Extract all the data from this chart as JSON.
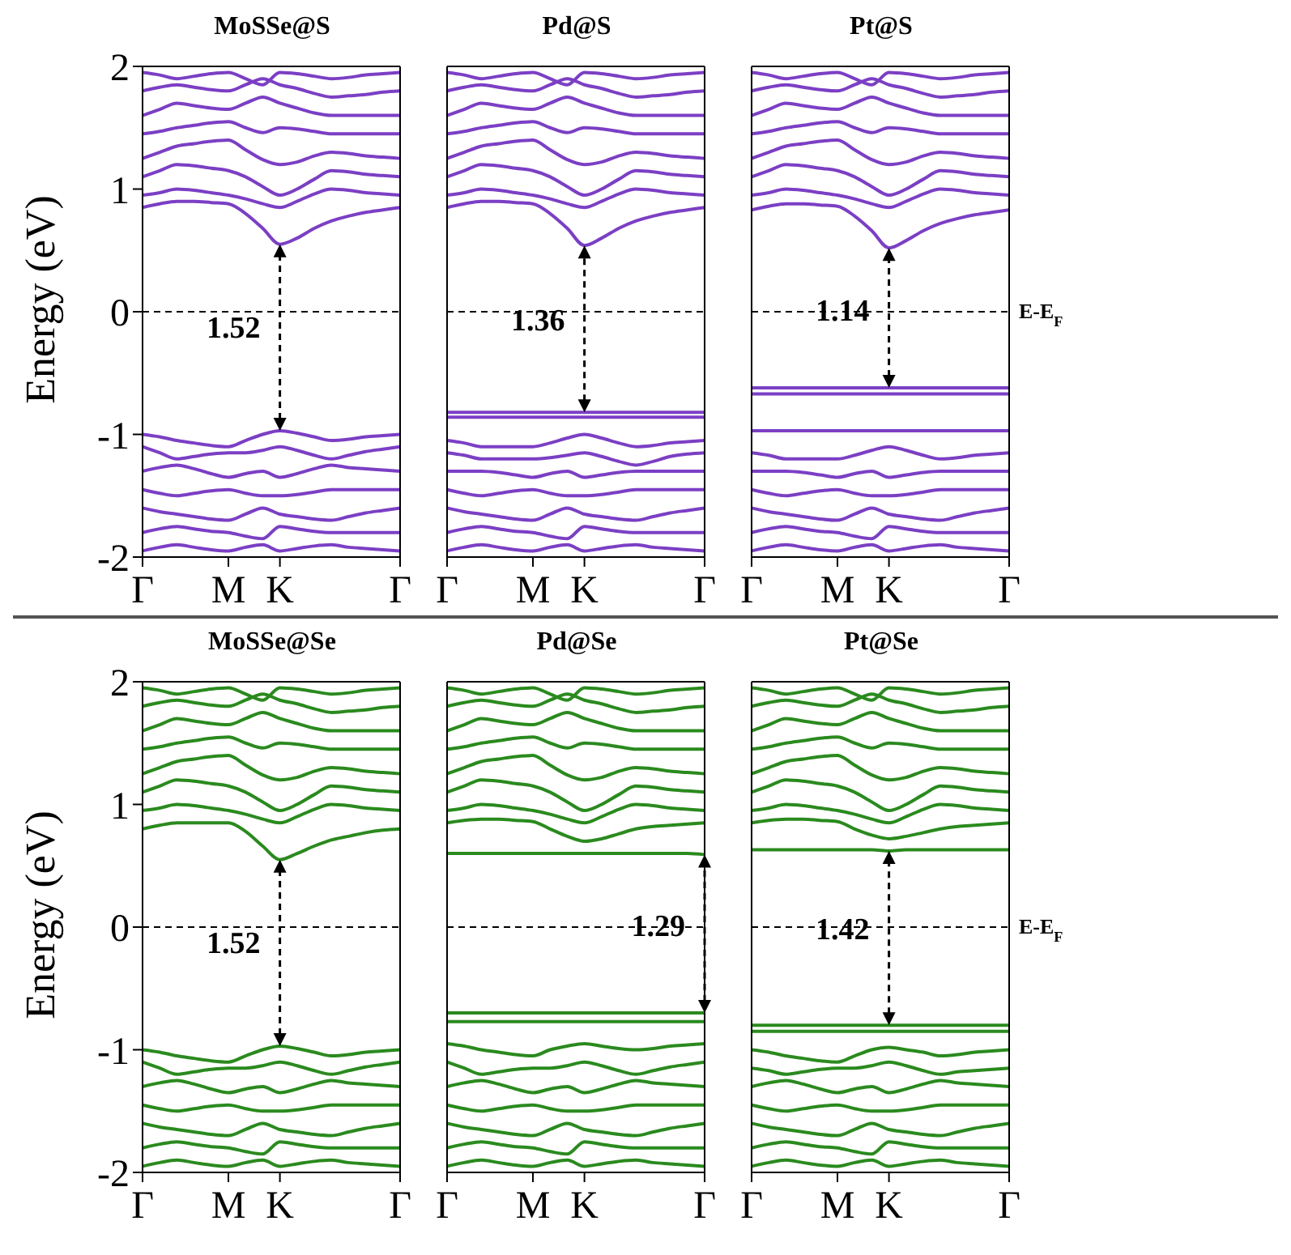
{
  "chart_data": [
    {
      "type": "line",
      "title": "MoSSe@S",
      "ylabel": "Energy (eV)",
      "color": "#7b3fc4",
      "categories": [
        "Γ",
        null,
        null,
        null,
        null,
        "M",
        null,
        null,
        "K",
        null,
        null,
        null,
        null,
        null,
        null,
        "Γ"
      ],
      "ylim": [
        -2,
        2
      ],
      "yticks": [
        -2,
        -1,
        0,
        1,
        2
      ],
      "ref_lines": [
        {
          "axis": "y",
          "value": 0,
          "color": "#000000",
          "line_style": "dashed"
        }
      ],
      "annotations": [
        "1.52"
      ],
      "series": [
        {
          "values": [
            0.85,
            0.88,
            0.9,
            0.9,
            0.89,
            0.88,
            0.8,
            0.68,
            0.55,
            0.6,
            0.68,
            0.74,
            0.78,
            0.81,
            0.83,
            0.85
          ]
        },
        {
          "values": [
            0.95,
            0.97,
            1.0,
            0.99,
            0.97,
            0.95,
            0.92,
            0.88,
            0.85,
            0.9,
            0.96,
            1.0,
            0.99,
            0.97,
            0.96,
            0.95
          ]
        },
        {
          "values": [
            1.1,
            1.15,
            1.2,
            1.19,
            1.17,
            1.15,
            1.1,
            1.02,
            0.95,
            1.0,
            1.08,
            1.15,
            1.14,
            1.12,
            1.11,
            1.1
          ]
        },
        {
          "values": [
            1.25,
            1.3,
            1.35,
            1.37,
            1.39,
            1.4,
            1.32,
            1.24,
            1.2,
            1.22,
            1.27,
            1.3,
            1.29,
            1.27,
            1.26,
            1.25
          ]
        },
        {
          "values": [
            1.45,
            1.47,
            1.5,
            1.52,
            1.54,
            1.55,
            1.5,
            1.46,
            1.5,
            1.49,
            1.47,
            1.45,
            1.45,
            1.45,
            1.45,
            1.45
          ]
        },
        {
          "values": [
            1.6,
            1.65,
            1.7,
            1.68,
            1.66,
            1.65,
            1.7,
            1.75,
            1.7,
            1.66,
            1.62,
            1.6,
            1.6,
            1.6,
            1.6,
            1.6
          ]
        },
        {
          "values": [
            1.8,
            1.83,
            1.85,
            1.83,
            1.81,
            1.8,
            1.85,
            1.9,
            1.85,
            1.82,
            1.78,
            1.75,
            1.76,
            1.77,
            1.79,
            1.8
          ]
        },
        {
          "values": [
            1.95,
            1.93,
            1.9,
            1.92,
            1.94,
            1.95,
            1.9,
            1.85,
            1.95,
            1.94,
            1.92,
            1.9,
            1.91,
            1.93,
            1.94,
            1.95
          ]
        },
        {
          "values": [
            -1.0,
            -1.02,
            -1.05,
            -1.07,
            -1.09,
            -1.1,
            -1.05,
            -1.0,
            -0.97,
            -0.99,
            -1.02,
            -1.05,
            -1.04,
            -1.02,
            -1.01,
            -1.0
          ]
        },
        {
          "values": [
            -1.1,
            -1.15,
            -1.2,
            -1.18,
            -1.16,
            -1.15,
            -1.15,
            -1.13,
            -1.1,
            -1.13,
            -1.17,
            -1.2,
            -1.17,
            -1.14,
            -1.12,
            -1.1
          ]
        },
        {
          "values": [
            -1.3,
            -1.27,
            -1.25,
            -1.28,
            -1.32,
            -1.35,
            -1.32,
            -1.3,
            -1.35,
            -1.32,
            -1.28,
            -1.25,
            -1.27,
            -1.28,
            -1.29,
            -1.3
          ]
        },
        {
          "values": [
            -1.45,
            -1.48,
            -1.5,
            -1.48,
            -1.46,
            -1.45,
            -1.48,
            -1.5,
            -1.5,
            -1.49,
            -1.47,
            -1.45,
            -1.45,
            -1.45,
            -1.45,
            -1.45
          ]
        },
        {
          "values": [
            -1.6,
            -1.63,
            -1.65,
            -1.67,
            -1.69,
            -1.7,
            -1.65,
            -1.6,
            -1.65,
            -1.67,
            -1.69,
            -1.7,
            -1.67,
            -1.64,
            -1.62,
            -1.6
          ]
        },
        {
          "values": [
            -1.8,
            -1.77,
            -1.75,
            -1.77,
            -1.79,
            -1.8,
            -1.83,
            -1.85,
            -1.75,
            -1.77,
            -1.79,
            -1.8,
            -1.8,
            -1.8,
            -1.8,
            -1.8
          ]
        },
        {
          "values": [
            -1.95,
            -1.92,
            -1.9,
            -1.92,
            -1.94,
            -1.95,
            -1.92,
            -1.9,
            -1.95,
            -1.93,
            -1.91,
            -1.9,
            -1.92,
            -1.93,
            -1.94,
            -1.95
          ]
        }
      ]
    },
    {
      "type": "line",
      "title": "Pd@S",
      "color": "#7b3fc4",
      "categories": [
        "Γ",
        null,
        null,
        null,
        null,
        "M",
        null,
        null,
        "K",
        null,
        null,
        null,
        null,
        null,
        null,
        "Γ"
      ],
      "ylim": [
        -2,
        2
      ],
      "yticks": [
        -2,
        -1,
        0,
        1,
        2
      ],
      "ref_lines": [
        {
          "axis": "y",
          "value": 0,
          "color": "#000000",
          "line_style": "dashed"
        }
      ],
      "annotations": [
        "1.36"
      ],
      "series": [
        {
          "values": [
            0.85,
            0.88,
            0.9,
            0.9,
            0.89,
            0.88,
            0.8,
            0.68,
            0.54,
            0.6,
            0.68,
            0.74,
            0.78,
            0.81,
            0.83,
            0.85
          ]
        },
        {
          "values": [
            0.95,
            0.97,
            1.0,
            0.99,
            0.97,
            0.95,
            0.92,
            0.88,
            0.85,
            0.9,
            0.96,
            1.0,
            0.99,
            0.97,
            0.96,
            0.95
          ]
        },
        {
          "values": [
            1.1,
            1.15,
            1.2,
            1.19,
            1.17,
            1.15,
            1.1,
            1.02,
            0.95,
            1.0,
            1.08,
            1.15,
            1.14,
            1.12,
            1.11,
            1.1
          ]
        },
        {
          "values": [
            1.25,
            1.3,
            1.35,
            1.37,
            1.39,
            1.4,
            1.32,
            1.24,
            1.2,
            1.22,
            1.27,
            1.3,
            1.29,
            1.27,
            1.26,
            1.25
          ]
        },
        {
          "values": [
            1.45,
            1.47,
            1.5,
            1.52,
            1.54,
            1.55,
            1.5,
            1.46,
            1.5,
            1.49,
            1.47,
            1.45,
            1.45,
            1.45,
            1.45,
            1.45
          ]
        },
        {
          "values": [
            1.6,
            1.65,
            1.7,
            1.68,
            1.66,
            1.65,
            1.7,
            1.75,
            1.7,
            1.66,
            1.62,
            1.6,
            1.6,
            1.6,
            1.6,
            1.6
          ]
        },
        {
          "values": [
            1.8,
            1.83,
            1.85,
            1.83,
            1.81,
            1.8,
            1.85,
            1.9,
            1.85,
            1.82,
            1.78,
            1.75,
            1.76,
            1.77,
            1.79,
            1.8
          ]
        },
        {
          "values": [
            1.95,
            1.93,
            1.9,
            1.92,
            1.94,
            1.95,
            1.9,
            1.85,
            1.95,
            1.94,
            1.92,
            1.9,
            1.91,
            1.93,
            1.94,
            1.95
          ]
        },
        {
          "values": [
            -0.82,
            -0.82,
            -0.82,
            -0.82,
            -0.82,
            -0.82,
            -0.82,
            -0.82,
            -0.82,
            -0.82,
            -0.82,
            -0.82,
            -0.82,
            -0.82,
            -0.82,
            -0.82
          ]
        },
        {
          "values": [
            -0.86,
            -0.86,
            -0.86,
            -0.86,
            -0.86,
            -0.86,
            -0.86,
            -0.86,
            -0.86,
            -0.86,
            -0.86,
            -0.86,
            -0.86,
            -0.86,
            -0.86,
            -0.86
          ]
        },
        {
          "values": [
            -1.05,
            -1.07,
            -1.1,
            -1.1,
            -1.1,
            -1.1,
            -1.07,
            -1.03,
            -1.0,
            -1.03,
            -1.07,
            -1.1,
            -1.09,
            -1.07,
            -1.06,
            -1.05
          ]
        },
        {
          "values": [
            -1.15,
            -1.17,
            -1.2,
            -1.2,
            -1.2,
            -1.2,
            -1.19,
            -1.17,
            -1.15,
            -1.18,
            -1.22,
            -1.25,
            -1.22,
            -1.18,
            -1.16,
            -1.15
          ]
        },
        {
          "values": [
            -1.3,
            -1.3,
            -1.3,
            -1.31,
            -1.33,
            -1.35,
            -1.32,
            -1.3,
            -1.35,
            -1.33,
            -1.31,
            -1.3,
            -1.3,
            -1.3,
            -1.3,
            -1.3
          ]
        },
        {
          "values": [
            -1.45,
            -1.48,
            -1.5,
            -1.48,
            -1.46,
            -1.45,
            -1.48,
            -1.5,
            -1.5,
            -1.49,
            -1.47,
            -1.45,
            -1.45,
            -1.45,
            -1.45,
            -1.45
          ]
        },
        {
          "values": [
            -1.6,
            -1.63,
            -1.65,
            -1.67,
            -1.69,
            -1.7,
            -1.65,
            -1.6,
            -1.65,
            -1.67,
            -1.69,
            -1.7,
            -1.67,
            -1.64,
            -1.62,
            -1.6
          ]
        },
        {
          "values": [
            -1.8,
            -1.77,
            -1.75,
            -1.77,
            -1.79,
            -1.8,
            -1.83,
            -1.85,
            -1.75,
            -1.77,
            -1.79,
            -1.8,
            -1.8,
            -1.8,
            -1.8,
            -1.8
          ]
        },
        {
          "values": [
            -1.95,
            -1.92,
            -1.9,
            -1.92,
            -1.94,
            -1.95,
            -1.92,
            -1.9,
            -1.95,
            -1.93,
            -1.91,
            -1.9,
            -1.92,
            -1.93,
            -1.94,
            -1.95
          ]
        }
      ],
      "tick_labels": "x"
    },
    {
      "type": "line",
      "title": "Pt@S",
      "color": "#7b3fc4",
      "categories": [
        "Γ",
        null,
        null,
        null,
        null,
        "M",
        null,
        null,
        "K",
        null,
        null,
        null,
        null,
        null,
        null,
        "Γ"
      ],
      "ylim": [
        -2,
        2
      ],
      "yticks": [
        -2,
        -1,
        0,
        1,
        2
      ],
      "ref_lines": [
        {
          "axis": "y",
          "value": 0,
          "color": "#000000",
          "line_style": "dashed",
          "label": "E-E$_{F}$"
        }
      ],
      "annotations": [
        "1.14"
      ],
      "series": [
        {
          "values": [
            0.83,
            0.86,
            0.88,
            0.88,
            0.87,
            0.86,
            0.78,
            0.66,
            0.52,
            0.58,
            0.66,
            0.72,
            0.76,
            0.79,
            0.81,
            0.83
          ]
        },
        {
          "values": [
            0.95,
            0.97,
            1.0,
            0.99,
            0.97,
            0.95,
            0.92,
            0.88,
            0.85,
            0.9,
            0.96,
            1.0,
            0.99,
            0.97,
            0.96,
            0.95
          ]
        },
        {
          "values": [
            1.1,
            1.15,
            1.2,
            1.19,
            1.17,
            1.15,
            1.1,
            1.02,
            0.95,
            1.0,
            1.08,
            1.15,
            1.14,
            1.12,
            1.11,
            1.1
          ]
        },
        {
          "values": [
            1.25,
            1.3,
            1.35,
            1.37,
            1.39,
            1.4,
            1.32,
            1.24,
            1.2,
            1.22,
            1.27,
            1.3,
            1.29,
            1.27,
            1.26,
            1.25
          ]
        },
        {
          "values": [
            1.45,
            1.47,
            1.5,
            1.52,
            1.54,
            1.55,
            1.5,
            1.46,
            1.5,
            1.49,
            1.47,
            1.45,
            1.45,
            1.45,
            1.45,
            1.45
          ]
        },
        {
          "values": [
            1.6,
            1.65,
            1.7,
            1.68,
            1.66,
            1.65,
            1.7,
            1.75,
            1.7,
            1.66,
            1.62,
            1.6,
            1.6,
            1.6,
            1.6,
            1.6
          ]
        },
        {
          "values": [
            1.8,
            1.83,
            1.85,
            1.83,
            1.81,
            1.8,
            1.85,
            1.9,
            1.85,
            1.82,
            1.78,
            1.75,
            1.76,
            1.77,
            1.79,
            1.8
          ]
        },
        {
          "values": [
            1.95,
            1.93,
            1.9,
            1.92,
            1.94,
            1.95,
            1.9,
            1.85,
            1.95,
            1.94,
            1.92,
            1.9,
            1.91,
            1.93,
            1.94,
            1.95
          ]
        },
        {
          "values": [
            -0.62,
            -0.62,
            -0.62,
            -0.62,
            -0.62,
            -0.62,
            -0.62,
            -0.62,
            -0.62,
            -0.62,
            -0.62,
            -0.62,
            -0.62,
            -0.62,
            -0.62,
            -0.62
          ]
        },
        {
          "values": [
            -0.67,
            -0.67,
            -0.67,
            -0.67,
            -0.67,
            -0.67,
            -0.67,
            -0.67,
            -0.67,
            -0.67,
            -0.67,
            -0.67,
            -0.67,
            -0.67,
            -0.67,
            -0.67
          ]
        },
        {
          "values": [
            -0.97,
            -0.97,
            -0.97,
            -0.97,
            -0.97,
            -0.97,
            -0.97,
            -0.97,
            -0.97,
            -0.97,
            -0.97,
            -0.97,
            -0.97,
            -0.97,
            -0.97,
            -0.97
          ]
        },
        {
          "values": [
            -1.15,
            -1.17,
            -1.2,
            -1.2,
            -1.2,
            -1.2,
            -1.17,
            -1.13,
            -1.1,
            -1.13,
            -1.17,
            -1.2,
            -1.19,
            -1.17,
            -1.16,
            -1.15
          ]
        },
        {
          "values": [
            -1.3,
            -1.3,
            -1.3,
            -1.31,
            -1.33,
            -1.35,
            -1.32,
            -1.3,
            -1.35,
            -1.33,
            -1.31,
            -1.3,
            -1.3,
            -1.3,
            -1.3,
            -1.3
          ]
        },
        {
          "values": [
            -1.45,
            -1.48,
            -1.5,
            -1.48,
            -1.46,
            -1.45,
            -1.48,
            -1.5,
            -1.5,
            -1.49,
            -1.47,
            -1.45,
            -1.45,
            -1.45,
            -1.45,
            -1.45
          ]
        },
        {
          "values": [
            -1.6,
            -1.63,
            -1.65,
            -1.67,
            -1.69,
            -1.7,
            -1.65,
            -1.6,
            -1.65,
            -1.67,
            -1.69,
            -1.7,
            -1.67,
            -1.64,
            -1.62,
            -1.6
          ]
        },
        {
          "values": [
            -1.8,
            -1.77,
            -1.75,
            -1.77,
            -1.79,
            -1.8,
            -1.83,
            -1.85,
            -1.75,
            -1.77,
            -1.79,
            -1.8,
            -1.8,
            -1.8,
            -1.8,
            -1.8
          ]
        },
        {
          "values": [
            -1.95,
            -1.92,
            -1.9,
            -1.92,
            -1.94,
            -1.95,
            -1.92,
            -1.9,
            -1.95,
            -1.93,
            -1.91,
            -1.9,
            -1.92,
            -1.93,
            -1.94,
            -1.95
          ]
        }
      ],
      "tick_labels": "x"
    },
    {
      "type": "line",
      "title": "MoSSe@Se",
      "ylabel": "Energy (eV)",
      "color": "#2a8a1e",
      "categories": [
        "Γ",
        null,
        null,
        null,
        null,
        "M",
        null,
        null,
        "K",
        null,
        null,
        null,
        null,
        null,
        null,
        "Γ"
      ],
      "ylim": [
        -2,
        2
      ],
      "yticks": [
        -2,
        -1,
        0,
        1,
        2
      ],
      "ref_lines": [
        {
          "axis": "y",
          "value": 0,
          "color": "#000000",
          "line_style": "dashed"
        }
      ],
      "annotations": [
        "1.52"
      ],
      "series": [
        {
          "values": [
            0.8,
            0.83,
            0.85,
            0.85,
            0.85,
            0.85,
            0.78,
            0.66,
            0.55,
            0.6,
            0.66,
            0.71,
            0.74,
            0.77,
            0.79,
            0.8
          ]
        },
        {
          "values": [
            0.95,
            0.97,
            1.0,
            0.99,
            0.97,
            0.95,
            0.92,
            0.88,
            0.85,
            0.9,
            0.96,
            1.0,
            0.99,
            0.97,
            0.96,
            0.95
          ]
        },
        {
          "values": [
            1.1,
            1.15,
            1.2,
            1.19,
            1.17,
            1.15,
            1.1,
            1.02,
            0.95,
            1.0,
            1.08,
            1.15,
            1.14,
            1.12,
            1.11,
            1.1
          ]
        },
        {
          "values": [
            1.25,
            1.3,
            1.35,
            1.37,
            1.39,
            1.4,
            1.32,
            1.24,
            1.2,
            1.22,
            1.27,
            1.3,
            1.29,
            1.27,
            1.26,
            1.25
          ]
        },
        {
          "values": [
            1.45,
            1.47,
            1.5,
            1.52,
            1.54,
            1.55,
            1.5,
            1.46,
            1.5,
            1.49,
            1.47,
            1.45,
            1.45,
            1.45,
            1.45,
            1.45
          ]
        },
        {
          "values": [
            1.6,
            1.65,
            1.7,
            1.68,
            1.66,
            1.65,
            1.7,
            1.75,
            1.7,
            1.66,
            1.62,
            1.6,
            1.6,
            1.6,
            1.6,
            1.6
          ]
        },
        {
          "values": [
            1.8,
            1.83,
            1.85,
            1.83,
            1.81,
            1.8,
            1.85,
            1.9,
            1.85,
            1.82,
            1.78,
            1.75,
            1.76,
            1.77,
            1.79,
            1.8
          ]
        },
        {
          "values": [
            1.95,
            1.93,
            1.9,
            1.92,
            1.94,
            1.95,
            1.9,
            1.85,
            1.95,
            1.94,
            1.92,
            1.9,
            1.91,
            1.93,
            1.94,
            1.95
          ]
        },
        {
          "values": [
            -1.0,
            -1.02,
            -1.05,
            -1.07,
            -1.09,
            -1.1,
            -1.05,
            -1.0,
            -0.97,
            -0.99,
            -1.02,
            -1.05,
            -1.04,
            -1.02,
            -1.01,
            -1.0
          ]
        },
        {
          "values": [
            -1.1,
            -1.15,
            -1.2,
            -1.18,
            -1.16,
            -1.15,
            -1.15,
            -1.13,
            -1.1,
            -1.13,
            -1.17,
            -1.2,
            -1.17,
            -1.14,
            -1.12,
            -1.1
          ]
        },
        {
          "values": [
            -1.3,
            -1.27,
            -1.25,
            -1.28,
            -1.32,
            -1.35,
            -1.32,
            -1.3,
            -1.35,
            -1.32,
            -1.28,
            -1.25,
            -1.27,
            -1.28,
            -1.29,
            -1.3
          ]
        },
        {
          "values": [
            -1.45,
            -1.48,
            -1.5,
            -1.48,
            -1.46,
            -1.45,
            -1.48,
            -1.5,
            -1.5,
            -1.49,
            -1.47,
            -1.45,
            -1.45,
            -1.45,
            -1.45,
            -1.45
          ]
        },
        {
          "values": [
            -1.6,
            -1.63,
            -1.65,
            -1.67,
            -1.69,
            -1.7,
            -1.65,
            -1.6,
            -1.65,
            -1.67,
            -1.69,
            -1.7,
            -1.67,
            -1.64,
            -1.62,
            -1.6
          ]
        },
        {
          "values": [
            -1.8,
            -1.77,
            -1.75,
            -1.77,
            -1.79,
            -1.8,
            -1.83,
            -1.85,
            -1.75,
            -1.77,
            -1.79,
            -1.8,
            -1.8,
            -1.8,
            -1.8,
            -1.8
          ]
        },
        {
          "values": [
            -1.95,
            -1.92,
            -1.9,
            -1.92,
            -1.94,
            -1.95,
            -1.92,
            -1.9,
            -1.95,
            -1.93,
            -1.91,
            -1.9,
            -1.92,
            -1.93,
            -1.94,
            -1.95
          ]
        }
      ]
    },
    {
      "type": "line",
      "title": "Pd@Se",
      "color": "#2a8a1e",
      "categories": [
        "Γ",
        null,
        null,
        null,
        null,
        "M",
        null,
        null,
        "K",
        null,
        null,
        null,
        null,
        null,
        null,
        "Γ"
      ],
      "ylim": [
        -2,
        2
      ],
      "yticks": [
        -2,
        -1,
        0,
        1,
        2
      ],
      "ref_lines": [
        {
          "axis": "y",
          "value": 0,
          "color": "#000000",
          "line_style": "dashed"
        }
      ],
      "annotations": [
        "1.29"
      ],
      "series": [
        {
          "values": [
            0.6,
            0.6,
            0.6,
            0.6,
            0.6,
            0.6,
            0.6,
            0.6,
            0.6,
            0.6,
            0.6,
            0.6,
            0.6,
            0.6,
            0.6,
            0.59
          ]
        },
        {
          "values": [
            0.85,
            0.87,
            0.88,
            0.88,
            0.87,
            0.86,
            0.8,
            0.74,
            0.7,
            0.72,
            0.76,
            0.8,
            0.82,
            0.83,
            0.84,
            0.85
          ]
        },
        {
          "values": [
            0.95,
            0.97,
            1.0,
            0.99,
            0.97,
            0.95,
            0.92,
            0.88,
            0.85,
            0.9,
            0.96,
            1.0,
            0.99,
            0.97,
            0.96,
            0.95
          ]
        },
        {
          "values": [
            1.1,
            1.15,
            1.2,
            1.19,
            1.17,
            1.15,
            1.1,
            1.02,
            0.95,
            1.0,
            1.08,
            1.15,
            1.14,
            1.12,
            1.11,
            1.1
          ]
        },
        {
          "values": [
            1.25,
            1.3,
            1.35,
            1.37,
            1.39,
            1.4,
            1.32,
            1.24,
            1.2,
            1.22,
            1.27,
            1.3,
            1.29,
            1.27,
            1.26,
            1.25
          ]
        },
        {
          "values": [
            1.45,
            1.47,
            1.5,
            1.52,
            1.54,
            1.55,
            1.5,
            1.46,
            1.5,
            1.49,
            1.47,
            1.45,
            1.45,
            1.45,
            1.45,
            1.45
          ]
        },
        {
          "values": [
            1.6,
            1.65,
            1.7,
            1.68,
            1.66,
            1.65,
            1.7,
            1.75,
            1.7,
            1.66,
            1.62,
            1.6,
            1.6,
            1.6,
            1.6,
            1.6
          ]
        },
        {
          "values": [
            1.8,
            1.83,
            1.85,
            1.83,
            1.81,
            1.8,
            1.85,
            1.9,
            1.85,
            1.82,
            1.78,
            1.75,
            1.76,
            1.77,
            1.79,
            1.8
          ]
        },
        {
          "values": [
            1.95,
            1.93,
            1.9,
            1.92,
            1.94,
            1.95,
            1.9,
            1.85,
            1.95,
            1.94,
            1.92,
            1.9,
            1.91,
            1.93,
            1.94,
            1.95
          ]
        },
        {
          "values": [
            -0.7,
            -0.7,
            -0.7,
            -0.7,
            -0.7,
            -0.7,
            -0.7,
            -0.7,
            -0.7,
            -0.7,
            -0.7,
            -0.7,
            -0.7,
            -0.7,
            -0.7,
            -0.7
          ]
        },
        {
          "values": [
            -0.77,
            -0.77,
            -0.77,
            -0.77,
            -0.77,
            -0.77,
            -0.77,
            -0.77,
            -0.77,
            -0.77,
            -0.77,
            -0.77,
            -0.77,
            -0.77,
            -0.77,
            -0.77
          ]
        },
        {
          "values": [
            -0.95,
            -0.97,
            -1.0,
            -1.02,
            -1.04,
            -1.05,
            -1.0,
            -0.97,
            -0.95,
            -0.97,
            -0.99,
            -1.0,
            -0.99,
            -0.97,
            -0.96,
            -0.95
          ]
        },
        {
          "values": [
            -1.1,
            -1.15,
            -1.2,
            -1.18,
            -1.16,
            -1.15,
            -1.15,
            -1.13,
            -1.1,
            -1.13,
            -1.17,
            -1.2,
            -1.17,
            -1.14,
            -1.12,
            -1.1
          ]
        },
        {
          "values": [
            -1.3,
            -1.27,
            -1.25,
            -1.28,
            -1.32,
            -1.35,
            -1.32,
            -1.3,
            -1.35,
            -1.32,
            -1.28,
            -1.25,
            -1.27,
            -1.28,
            -1.29,
            -1.3
          ]
        },
        {
          "values": [
            -1.45,
            -1.48,
            -1.5,
            -1.48,
            -1.46,
            -1.45,
            -1.48,
            -1.5,
            -1.5,
            -1.49,
            -1.47,
            -1.45,
            -1.45,
            -1.45,
            -1.45,
            -1.45
          ]
        },
        {
          "values": [
            -1.6,
            -1.63,
            -1.65,
            -1.67,
            -1.69,
            -1.7,
            -1.65,
            -1.6,
            -1.65,
            -1.67,
            -1.69,
            -1.7,
            -1.67,
            -1.64,
            -1.62,
            -1.6
          ]
        },
        {
          "values": [
            -1.8,
            -1.77,
            -1.75,
            -1.77,
            -1.79,
            -1.8,
            -1.83,
            -1.85,
            -1.75,
            -1.77,
            -1.79,
            -1.8,
            -1.8,
            -1.8,
            -1.8,
            -1.8
          ]
        },
        {
          "values": [
            -1.95,
            -1.92,
            -1.9,
            -1.92,
            -1.94,
            -1.95,
            -1.92,
            -1.9,
            -1.95,
            -1.93,
            -1.91,
            -1.9,
            -1.92,
            -1.93,
            -1.94,
            -1.95
          ]
        }
      ],
      "tick_labels": "x"
    },
    {
      "type": "line",
      "title": "Pt@Se",
      "color": "#2a8a1e",
      "categories": [
        "Γ",
        null,
        null,
        null,
        null,
        "M",
        null,
        null,
        "K",
        null,
        null,
        null,
        null,
        null,
        null,
        "Γ"
      ],
      "ylim": [
        -2,
        2
      ],
      "yticks": [
        -2,
        -1,
        0,
        1,
        2
      ],
      "ref_lines": [
        {
          "axis": "y",
          "value": 0,
          "color": "#000000",
          "line_style": "dashed",
          "label": "E-E$_{F}$"
        }
      ],
      "annotations": [
        "1.42"
      ],
      "series": [
        {
          "values": [
            0.63,
            0.63,
            0.63,
            0.63,
            0.63,
            0.63,
            0.63,
            0.63,
            0.62,
            0.63,
            0.63,
            0.63,
            0.63,
            0.63,
            0.63,
            0.63
          ]
        },
        {
          "values": [
            0.85,
            0.87,
            0.88,
            0.88,
            0.87,
            0.86,
            0.8,
            0.75,
            0.72,
            0.74,
            0.77,
            0.8,
            0.82,
            0.83,
            0.84,
            0.85
          ]
        },
        {
          "values": [
            0.95,
            0.97,
            1.0,
            0.99,
            0.97,
            0.95,
            0.92,
            0.88,
            0.85,
            0.9,
            0.96,
            1.0,
            0.99,
            0.97,
            0.96,
            0.95
          ]
        },
        {
          "values": [
            1.1,
            1.15,
            1.2,
            1.19,
            1.17,
            1.15,
            1.1,
            1.02,
            0.95,
            1.0,
            1.08,
            1.15,
            1.14,
            1.12,
            1.11,
            1.1
          ]
        },
        {
          "values": [
            1.25,
            1.3,
            1.35,
            1.37,
            1.39,
            1.4,
            1.32,
            1.24,
            1.2,
            1.22,
            1.27,
            1.3,
            1.29,
            1.27,
            1.26,
            1.25
          ]
        },
        {
          "values": [
            1.45,
            1.47,
            1.5,
            1.52,
            1.54,
            1.55,
            1.5,
            1.46,
            1.5,
            1.49,
            1.47,
            1.45,
            1.45,
            1.45,
            1.45,
            1.45
          ]
        },
        {
          "values": [
            1.6,
            1.65,
            1.7,
            1.68,
            1.66,
            1.65,
            1.7,
            1.75,
            1.7,
            1.66,
            1.62,
            1.6,
            1.6,
            1.6,
            1.6,
            1.6
          ]
        },
        {
          "values": [
            1.8,
            1.83,
            1.85,
            1.83,
            1.81,
            1.8,
            1.85,
            1.9,
            1.85,
            1.82,
            1.78,
            1.75,
            1.76,
            1.77,
            1.79,
            1.8
          ]
        },
        {
          "values": [
            1.95,
            1.93,
            1.9,
            1.92,
            1.94,
            1.95,
            1.9,
            1.85,
            1.95,
            1.94,
            1.92,
            1.9,
            1.91,
            1.93,
            1.94,
            1.95
          ]
        },
        {
          "values": [
            -0.8,
            -0.8,
            -0.8,
            -0.8,
            -0.8,
            -0.8,
            -0.8,
            -0.8,
            -0.8,
            -0.8,
            -0.8,
            -0.8,
            -0.8,
            -0.8,
            -0.8,
            -0.8
          ]
        },
        {
          "values": [
            -0.85,
            -0.85,
            -0.85,
            -0.85,
            -0.85,
            -0.85,
            -0.85,
            -0.85,
            -0.85,
            -0.85,
            -0.85,
            -0.85,
            -0.85,
            -0.85,
            -0.85,
            -0.85
          ]
        },
        {
          "values": [
            -1.0,
            -1.02,
            -1.05,
            -1.07,
            -1.09,
            -1.1,
            -1.05,
            -1.0,
            -0.98,
            -1.0,
            -1.02,
            -1.05,
            -1.04,
            -1.02,
            -1.01,
            -1.0
          ]
        },
        {
          "values": [
            -1.15,
            -1.17,
            -1.2,
            -1.18,
            -1.16,
            -1.15,
            -1.15,
            -1.13,
            -1.1,
            -1.13,
            -1.17,
            -1.2,
            -1.18,
            -1.17,
            -1.16,
            -1.15
          ]
        },
        {
          "values": [
            -1.3,
            -1.27,
            -1.25,
            -1.28,
            -1.32,
            -1.35,
            -1.32,
            -1.3,
            -1.35,
            -1.32,
            -1.28,
            -1.25,
            -1.27,
            -1.28,
            -1.29,
            -1.3
          ]
        },
        {
          "values": [
            -1.45,
            -1.48,
            -1.5,
            -1.48,
            -1.46,
            -1.45,
            -1.48,
            -1.5,
            -1.5,
            -1.49,
            -1.47,
            -1.45,
            -1.45,
            -1.45,
            -1.45,
            -1.45
          ]
        },
        {
          "values": [
            -1.6,
            -1.63,
            -1.65,
            -1.67,
            -1.69,
            -1.7,
            -1.65,
            -1.6,
            -1.65,
            -1.67,
            -1.69,
            -1.7,
            -1.67,
            -1.64,
            -1.62,
            -1.6
          ]
        },
        {
          "values": [
            -1.8,
            -1.77,
            -1.75,
            -1.77,
            -1.79,
            -1.8,
            -1.83,
            -1.85,
            -1.75,
            -1.77,
            -1.79,
            -1.8,
            -1.8,
            -1.8,
            -1.8,
            -1.8
          ]
        },
        {
          "values": [
            -1.95,
            -1.92,
            -1.9,
            -1.92,
            -1.94,
            -1.95,
            -1.92,
            -1.9,
            -1.95,
            -1.93,
            -1.91,
            -1.9,
            -1.92,
            -1.93,
            -1.94,
            -1.95
          ]
        }
      ],
      "tick_labels": "x"
    }
  ]
}
